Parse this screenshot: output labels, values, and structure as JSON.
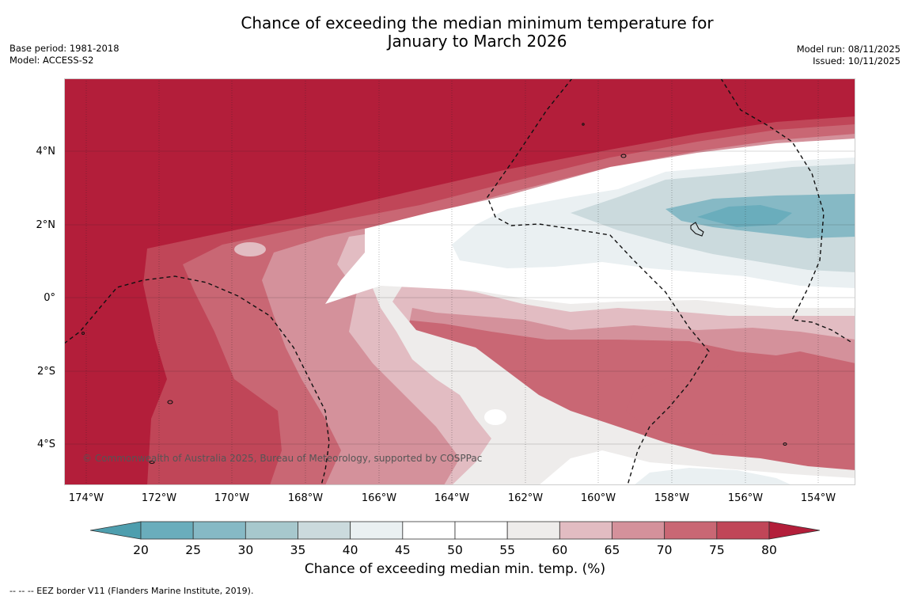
{
  "title_line1": "Chance of exceeding the median minimum temperature for",
  "title_line2": "January to March 2026",
  "base_period": "Base period: 1981-2018",
  "model": "Model: ACCESS-S2",
  "model_run": "Model run: 08/11/2025",
  "issued": "Issued: 10/11/2025",
  "lat_labels": [
    "4°N",
    "2°N",
    "0°",
    "2°S",
    "4°S"
  ],
  "lon_labels": [
    "174°W",
    "172°W",
    "170°W",
    "168°W",
    "166°W",
    "164°W",
    "162°W",
    "160°W",
    "158°W",
    "156°W",
    "154°W"
  ],
  "copyright": "© Commonwealth of Australia 2025, Bureau of Meteorology, supported by COSPPac",
  "colorbar": {
    "ticks": [
      "20",
      "25",
      "30",
      "35",
      "40",
      "45",
      "50",
      "55",
      "60",
      "65",
      "70",
      "75",
      "80"
    ],
    "colors": [
      "#4e9eae",
      "#6aadbc",
      "#86b9c5",
      "#a7c8cd",
      "#cbdadd",
      "#eaf0f2",
      "#ffffff",
      "#ffffff",
      "#eeeceb",
      "#e2bcc2",
      "#d4919b",
      "#c96774",
      "#c04658",
      "#b31e3a"
    ],
    "label": "Chance of exceeding median min. temp. (%)"
  },
  "legend_note": "--  --  -- EEZ border V11 (Flanders Marine Institute, 2019)."
}
